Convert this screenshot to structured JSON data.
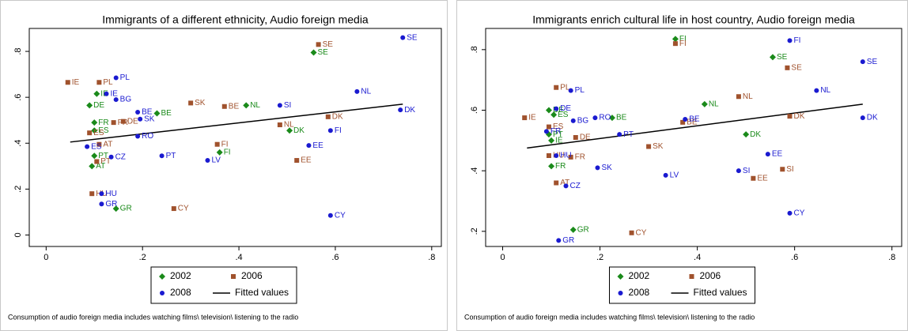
{
  "chart_data": [
    {
      "type": "scatter",
      "title": "Immigrants of a different ethnicity, Audio foreign media",
      "note": "Consumption of audio foreign media includes watching films\\ television\\ listening to the radio",
      "xlim": [
        -0.035,
        0.82
      ],
      "ylim": [
        -0.05,
        0.9
      ],
      "xticks": [
        0,
        {
          "value": 0.2,
          "label": ".2"
        },
        {
          "value": 0.4,
          "label": ".4"
        },
        {
          "value": 0.6,
          "label": ".6"
        },
        {
          "value": 0.8,
          "label": ".8"
        }
      ],
      "yticks": [
        0,
        {
          "value": 0.2,
          "label": ".2"
        },
        {
          "value": 0.4,
          "label": ".4"
        },
        {
          "value": 0.6,
          "label": ".6"
        },
        {
          "value": 0.8,
          "label": ".8"
        }
      ],
      "grid": false,
      "series": [
        {
          "name": "2002",
          "color": "#1a8a1a",
          "symbol": "diamond",
          "labels": [
            "SE",
            "IE",
            "DE",
            "BE",
            "NL",
            "FR",
            "ES",
            "DK",
            "FI",
            "PT",
            "AT",
            "GR"
          ],
          "x": [
            0.555,
            0.105,
            0.09,
            0.23,
            0.415,
            0.1,
            0.1,
            0.505,
            0.36,
            0.1,
            0.095,
            0.145
          ],
          "values": [
            0.795,
            0.615,
            0.565,
            0.53,
            0.565,
            0.49,
            0.455,
            0.455,
            0.36,
            0.345,
            0.3,
            0.115
          ]
        },
        {
          "name": "2006",
          "color": "#a0522d",
          "symbol": "square",
          "labels": [
            "IE",
            "PL",
            "SE",
            "SK",
            "BE",
            "DE",
            "FR",
            "NL",
            "DK",
            "ES",
            "AT",
            "FI",
            "PT",
            "EE",
            "HU",
            "CY"
          ],
          "x": [
            0.045,
            0.11,
            0.565,
            0.3,
            0.37,
            0.16,
            0.14,
            0.485,
            0.585,
            0.09,
            0.11,
            0.355,
            0.105,
            0.52,
            0.095,
            0.265
          ],
          "values": [
            0.665,
            0.665,
            0.83,
            0.575,
            0.56,
            0.495,
            0.49,
            0.48,
            0.515,
            0.445,
            0.395,
            0.395,
            0.32,
            0.325,
            0.18,
            0.115
          ]
        },
        {
          "name": "2008",
          "color": "#1a1ad0",
          "symbol": "circle",
          "labels": [
            "SE",
            "PL",
            "NL",
            "IE",
            "BG",
            "BE",
            "SK",
            "SI",
            "DK",
            "RO",
            "EE",
            "FI",
            "LV",
            "PT",
            "ES",
            "CZ",
            "HU",
            "GR",
            "CY"
          ],
          "x": [
            0.74,
            0.145,
            0.645,
            0.125,
            0.145,
            0.19,
            0.195,
            0.485,
            0.735,
            0.19,
            0.545,
            0.59,
            0.335,
            0.24,
            0.085,
            0.135,
            0.115,
            0.115,
            0.59
          ],
          "values": [
            0.86,
            0.685,
            0.625,
            0.615,
            0.59,
            0.535,
            0.505,
            0.565,
            0.545,
            0.43,
            0.39,
            0.455,
            0.325,
            0.345,
            0.385,
            0.34,
            0.18,
            0.135,
            0.085
          ]
        }
      ],
      "fit": {
        "name": "Fitted values",
        "color": "#000000",
        "x": [
          0.05,
          0.74
        ],
        "values": [
          0.405,
          0.57
        ]
      }
    },
    {
      "type": "scatter",
      "title": "Immigrants enrich cultural life in host country, Audio foreign media",
      "note": "Consumption of audio foreign media includes watching films\\ television\\ listening to the radio",
      "xlim": [
        -0.035,
        0.82
      ],
      "ylim": [
        0.15,
        0.87
      ],
      "xticks": [
        0,
        {
          "value": 0.2,
          "label": ".2"
        },
        {
          "value": 0.4,
          "label": ".4"
        },
        {
          "value": 0.6,
          "label": ".6"
        },
        {
          "value": 0.8,
          "label": ".8"
        }
      ],
      "yticks": [
        {
          "value": 0.2,
          "label": ".2"
        },
        {
          "value": 0.4,
          "label": ".4"
        },
        {
          "value": 0.6,
          "label": ".6"
        },
        {
          "value": 0.8,
          "label": ".8"
        }
      ],
      "grid": false,
      "series": [
        {
          "name": "2002",
          "color": "#1a8a1a",
          "symbol": "diamond",
          "labels": [
            "FI",
            "SE",
            "DE",
            "ES",
            "PT",
            "IE",
            "FR",
            "NL",
            "BE",
            "DK",
            "GR"
          ],
          "x": [
            0.355,
            0.555,
            0.095,
            0.105,
            0.095,
            0.1,
            0.1,
            0.415,
            0.225,
            0.5,
            0.145
          ],
          "values": [
            0.835,
            0.775,
            0.6,
            0.585,
            0.52,
            0.5,
            0.415,
            0.62,
            0.575,
            0.52,
            0.205
          ]
        },
        {
          "name": "2006",
          "color": "#a0522d",
          "symbol": "square",
          "labels": [
            "FI",
            "SE",
            "PL",
            "IE",
            "ES",
            "DE",
            "NL",
            "BE",
            "DK",
            "SK",
            "HU",
            "FR",
            "AT",
            "SI",
            "EE",
            "CY"
          ],
          "x": [
            0.355,
            0.585,
            0.11,
            0.045,
            0.095,
            0.15,
            0.485,
            0.37,
            0.59,
            0.3,
            0.095,
            0.14,
            0.11,
            0.575,
            0.515,
            0.265
          ],
          "values": [
            0.82,
            0.74,
            0.675,
            0.575,
            0.545,
            0.51,
            0.645,
            0.56,
            0.58,
            0.48,
            0.45,
            0.445,
            0.36,
            0.405,
            0.375,
            0.195
          ]
        },
        {
          "name": "2008",
          "color": "#1a1ad0",
          "symbol": "circle",
          "labels": [
            "FI",
            "SE",
            "NL",
            "PL",
            "DE",
            "BG",
            "RO",
            "BE",
            "PT",
            "FR",
            "HU",
            "SK",
            "LV",
            "CZ",
            "SI",
            "EE",
            "DK",
            "CY",
            "GR"
          ],
          "x": [
            0.59,
            0.74,
            0.645,
            0.14,
            0.11,
            0.145,
            0.19,
            0.375,
            0.24,
            0.09,
            0.11,
            0.195,
            0.335,
            0.13,
            0.485,
            0.545,
            0.74,
            0.59,
            0.115
          ],
          "values": [
            0.83,
            0.76,
            0.665,
            0.665,
            0.605,
            0.565,
            0.575,
            0.57,
            0.52,
            0.53,
            0.45,
            0.41,
            0.385,
            0.35,
            0.4,
            0.455,
            0.575,
            0.26,
            0.17
          ]
        }
      ],
      "fit": {
        "name": "Fitted values",
        "color": "#000000",
        "x": [
          0.05,
          0.74
        ],
        "values": [
          0.475,
          0.62
        ]
      }
    }
  ]
}
